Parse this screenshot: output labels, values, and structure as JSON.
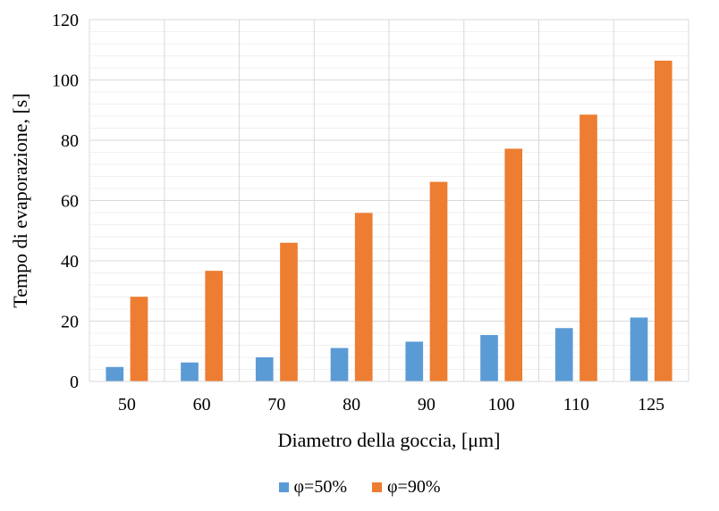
{
  "colors": {
    "series1": "#5B9BD5",
    "series2": "#ED7D31",
    "grid_major": "#D9D9D9",
    "grid_minor": "#F0F0F0"
  },
  "chart_data": {
    "type": "bar",
    "title": "",
    "xlabel": "Diametro della goccia, [μm]",
    "ylabel": "Tempo di evaporazione, [s]",
    "categories": [
      "50",
      "60",
      "70",
      "80",
      "90",
      "100",
      "110",
      "125"
    ],
    "series": [
      {
        "name": "φ=50%",
        "values": [
          4.8,
          6.3,
          8.0,
          11.1,
          13.2,
          15.4,
          17.7,
          21.2
        ]
      },
      {
        "name": "φ=90%",
        "values": [
          28.1,
          36.7,
          46.0,
          55.9,
          66.2,
          77.2,
          88.5,
          106.4
        ]
      }
    ],
    "ylim": [
      0,
      120
    ],
    "yticks": [
      "0",
      "20",
      "40",
      "60",
      "80",
      "100",
      "120"
    ],
    "grid": true,
    "minor_grid": true,
    "legend_position": "bottom"
  }
}
